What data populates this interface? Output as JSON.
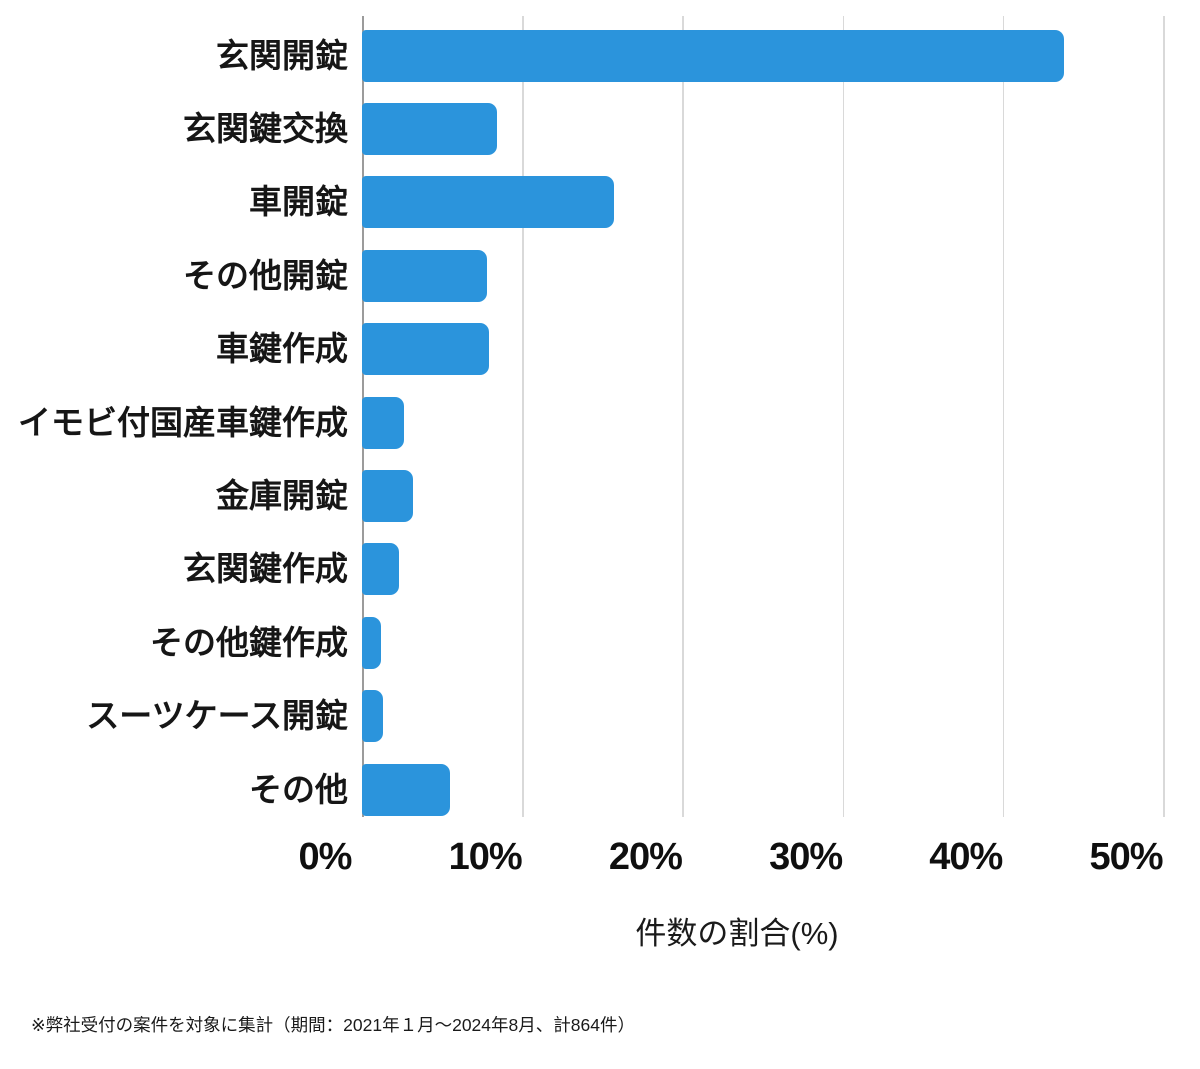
{
  "chart_data": {
    "type": "bar",
    "orientation": "horizontal",
    "title": "",
    "categories": [
      "玄関開錠",
      "玄関鍵交換",
      "車開錠",
      "その他開錠",
      "車鍵作成",
      "イモビ付国産車鍵作成",
      "金庫開錠",
      "玄関鍵作成",
      "その他鍵作成",
      "スーツケース開錠",
      "その他"
    ],
    "values": [
      43.8,
      8.4,
      15.7,
      7.8,
      7.9,
      2.6,
      3.2,
      2.3,
      1.2,
      1.3,
      5.5
    ],
    "unit": "%",
    "xlabel": "件数の割合(%)",
    "ylabel": "",
    "xlim": [
      0,
      50
    ],
    "x_ticks": [
      "0%",
      "10%",
      "20%",
      "30%",
      "40%",
      "50%"
    ],
    "x_tick_values": [
      0,
      10,
      20,
      30,
      40,
      50
    ],
    "grid": "vertical",
    "legend": "none",
    "bar_color": "#2b94dc",
    "gridline_color": "#d9d9d9",
    "axis_line_color": "#9b9b9b",
    "footnote": "※弊社受付の案件を対象に集計（期間：2021年１月〜2024年8月、計864件）"
  }
}
